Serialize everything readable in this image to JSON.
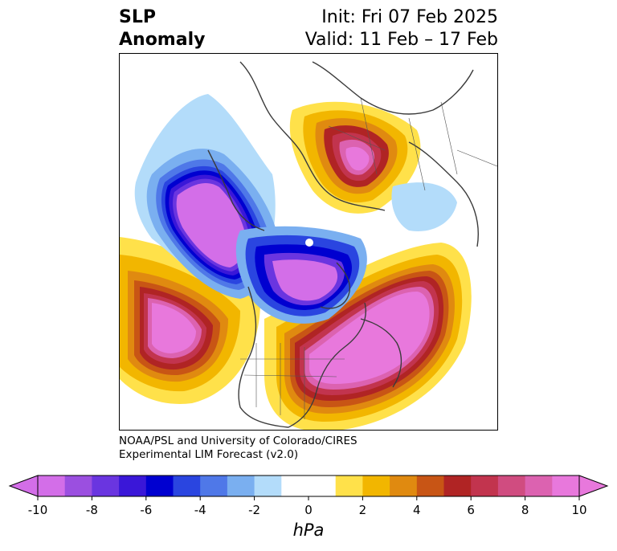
{
  "title": {
    "left_line1": "SLP",
    "left_line2": "Anomaly",
    "right_line1": "Init: Fri 07 Feb 2025",
    "right_line2": "Valid: 11 Feb – 17 Feb"
  },
  "credit": {
    "line1": "NOAA/PSL and University of Colorado/CIRES",
    "line2": "Experimental LIM Forecast (v2.0)"
  },
  "colorbar": {
    "unit": "hPa",
    "ticks": [
      "-10",
      "-8",
      "-6",
      "-4",
      "-2",
      "0",
      "2",
      "4",
      "6",
      "8",
      "10"
    ],
    "range": [
      -10,
      10
    ],
    "step": 1,
    "colors": [
      "#d36ee8",
      "#9b4fe0",
      "#6a35e0",
      "#3a17d8",
      "#0000d0",
      "#2a45e0",
      "#4f78e8",
      "#7aaff0",
      "#b3dcfa",
      "#ffffff",
      "#ffffff",
      "#ffe14a",
      "#f2b600",
      "#e08a10",
      "#c85515",
      "#b02424",
      "#c2344e",
      "#d04c80",
      "#dc62b0",
      "#e878dc"
    ]
  }
}
